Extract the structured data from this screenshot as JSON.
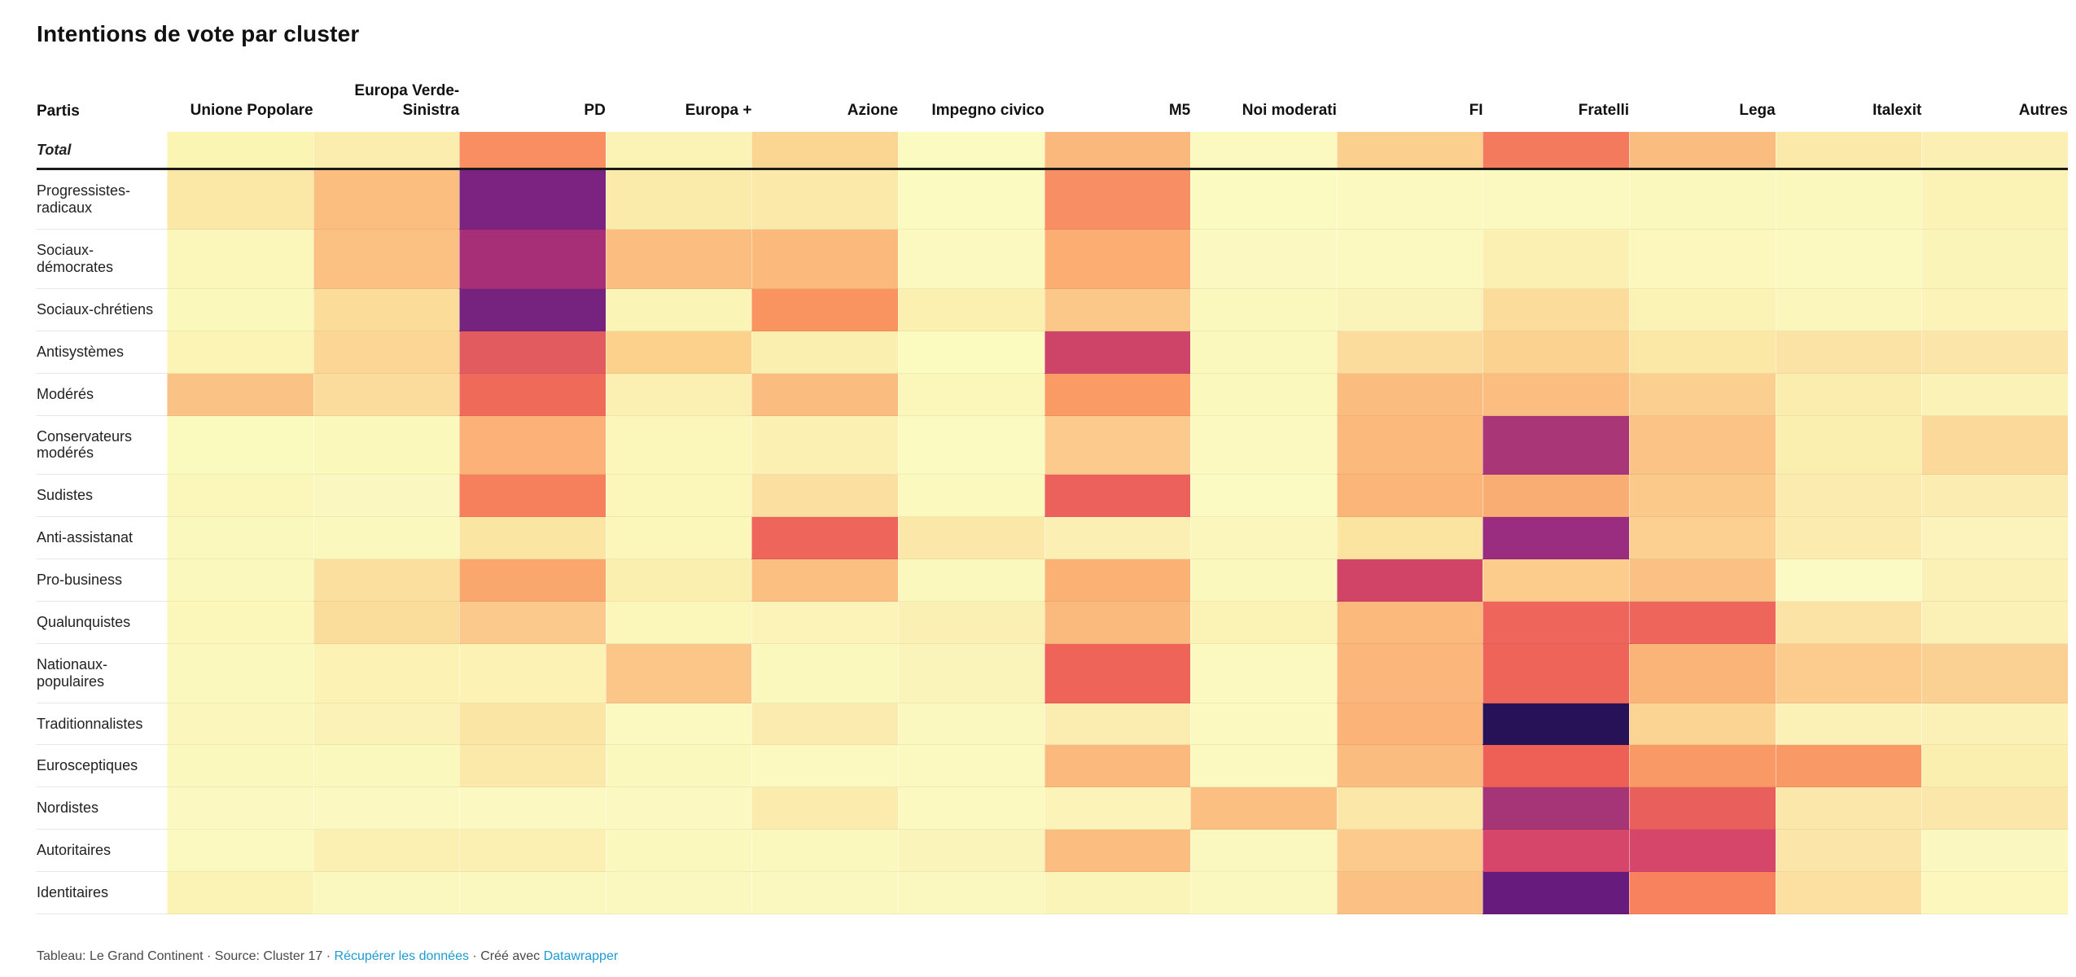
{
  "title": "Intentions de vote par cluster",
  "table": {
    "corner_label": "Partis"
  },
  "footer": {
    "prefix": "Tableau: Le Grand Continent · Source: Cluster 17 · ",
    "data_link": "Récupérer les données",
    "middle": " · Créé avec ",
    "brand_link": "Datawrapper"
  },
  "colors": {
    "link_blue": "#1D9BD3",
    "divider_black": "#1a1a1a",
    "label_gray": "#494949"
  },
  "chart_data": {
    "type": "heatmap",
    "title": "Intentions de vote par cluster",
    "legend_position": "none",
    "grid": "off",
    "scale_note": "pale yellow = low share, dark purple = high share",
    "columns": [
      "Unione Popolare",
      "Europa Verde-Sinistra",
      "PD",
      "Europa +",
      "Azione",
      "Impegno civico",
      "M5",
      "Noi moderati",
      "FI",
      "Fratelli",
      "Lega",
      "Italexit",
      "Autres"
    ],
    "rows": [
      "Total",
      "Progressistes-radicaux",
      "Sociaux-démocrates",
      "Sociaux-chrétiens",
      "Antisystèmes",
      "Modérés",
      "Conservateurs modérés",
      "Sudistes",
      "Anti-assistanat",
      "Pro-business",
      "Qualunquistes",
      "Nationaux-populaires",
      "Traditionnalistes",
      "Eurosceptiques",
      "Nordistes",
      "Autoritaires",
      "Identitaires"
    ],
    "total_row_index": 0,
    "cell_colors": [
      [
        "#FBF5B4",
        "#FBEDAE",
        "#F98E63",
        "#FBF3B5",
        "#FBD693",
        "#FBFAC1",
        "#FBB87C",
        "#FBF9C0",
        "#FBCF8E",
        "#F47A5E",
        "#FBBC80",
        "#FBE9A9",
        "#FBEFB3"
      ],
      [
        "#FBE7A6",
        "#FBBE7E",
        "#7C2382",
        "#FBEBAB",
        "#FBE9A9",
        "#FBFAC1",
        "#F88E63",
        "#FBFAC1",
        "#FBF9BF",
        "#FBF9BF",
        "#FBF8BE",
        "#FBF8BE",
        "#FBF3B6"
      ],
      [
        "#FBF6B9",
        "#FBC183",
        "#A62F77",
        "#FBBE80",
        "#FBBA7C",
        "#FBF9BF",
        "#FBAD72",
        "#FBF8C2",
        "#FBF9C0",
        "#FBF0B2",
        "#FBF7BD",
        "#FBF9BF",
        "#FBF4B8"
      ],
      [
        "#FBF8BC",
        "#FBDC98",
        "#76227F",
        "#FBF4B7",
        "#F9935F",
        "#FBF0AF",
        "#FBC88A",
        "#FBF8BE",
        "#FBF4BA",
        "#FBDC9B",
        "#FBF3B6",
        "#FBF6BB",
        "#FBF3B8"
      ],
      [
        "#FBF4B4",
        "#FBD694",
        "#E25B5E",
        "#FBD18C",
        "#FBEFB0",
        "#FBFABF",
        "#CE4368",
        "#FBF8BE",
        "#FBDC9C",
        "#FBD290",
        "#FBE8A7",
        "#FBE3A6",
        "#FBE5A9"
      ],
      [
        "#FBC285",
        "#FBDC9C",
        "#EF6A58",
        "#FBF0B1",
        "#FBBC80",
        "#FBF7BB",
        "#FA9A64",
        "#FBF8BD",
        "#FBBD7F",
        "#FBBD80",
        "#FBCF90",
        "#FBEDAE",
        "#FBF2B8"
      ],
      [
        "#FBFABE",
        "#FBF8BC",
        "#FBB177",
        "#FBF7BA",
        "#FBF0B1",
        "#FBFAC0",
        "#FBCA8C",
        "#FBF9C0",
        "#FBB97C",
        "#A93677",
        "#FBC385",
        "#FBEFB0",
        "#FBD99B"
      ],
      [
        "#FBF7BA",
        "#FBF7C0",
        "#F7805C",
        "#FBF6BA",
        "#FBDFA0",
        "#FBF9BE",
        "#EC615B",
        "#FBFAC3",
        "#FBB579",
        "#FAAD72",
        "#FBC98A",
        "#FBEBAE",
        "#FBEDB2"
      ],
      [
        "#FBF8BD",
        "#FBF8BD",
        "#FBE5A3",
        "#FBF7BB",
        "#EE655C",
        "#FBE8A9",
        "#FBEFB3",
        "#FBF6BC",
        "#FBE49F",
        "#9B2D80",
        "#FBD090",
        "#FBEBAE",
        "#FBF3BB"
      ],
      [
        "#FBF8BD",
        "#FBDF9E",
        "#FAA76D",
        "#FBEFAF",
        "#FBBF82",
        "#FBF8BE",
        "#FBB074",
        "#FBF8BE",
        "#D14367",
        "#FBCC8C",
        "#FBC184",
        "#FBFAC5",
        "#FBF0B6"
      ],
      [
        "#FBF7BB",
        "#FBDD9B",
        "#FBC98B",
        "#FBF6BA",
        "#FBF3B8",
        "#FBF0B4",
        "#FBBA7D",
        "#FBF2B6",
        "#FBB97C",
        "#ED655B",
        "#ED655B",
        "#FBE3A6",
        "#FBF0B6"
      ],
      [
        "#FBF8BE",
        "#FBF2B4",
        "#FBF2B4",
        "#FBC688",
        "#FBF8BE",
        "#FBF4BA",
        "#EE6458",
        "#FBF9BF",
        "#FBB67B",
        "#EE6458",
        "#FBB478",
        "#FBCC8E",
        "#FBD093"
      ],
      [
        "#FBF7BC",
        "#FBF2B8",
        "#FBE5A5",
        "#FBF8C0",
        "#FBEBAE",
        "#FBF8BF",
        "#FBEDB0",
        "#FBF9C0",
        "#FBB377",
        "#271258",
        "#FBD494",
        "#FBF0B6",
        "#FBF0B6"
      ],
      [
        "#FBF8BD",
        "#FBF8BD",
        "#FBE9A9",
        "#FBF8BE",
        "#FBF9BF",
        "#FBF9BF",
        "#FBB97D",
        "#FBF9C0",
        "#FBBC80",
        "#EE6056",
        "#F99966",
        "#F99966",
        "#FBEFB0"
      ],
      [
        "#FBF9C1",
        "#FBF9C1",
        "#FBF9C1",
        "#FBF9C1",
        "#FBEBAD",
        "#FBF9C0",
        "#FBF3B8",
        "#FBBF82",
        "#FBE7A8",
        "#A53577",
        "#E85F5C",
        "#FBE7AA",
        "#FBE7AA"
      ],
      [
        "#FBF9BF",
        "#FBEFB2",
        "#FBEFB2",
        "#FBF8BE",
        "#FBF8BE",
        "#FBF4BA",
        "#FBBD80",
        "#FBF8BF",
        "#FBCA8C",
        "#D6466A",
        "#D6466A",
        "#FBE5A8",
        "#FBF7C1"
      ],
      [
        "#FBF2B6",
        "#FBF8BF",
        "#FBF8BF",
        "#FBF8BF",
        "#FBF8BF",
        "#FBF8BF",
        "#FBF4B9",
        "#FBF8BF",
        "#FBC083",
        "#671C7D",
        "#F8815E",
        "#FBE0A2",
        "#FBF7BD"
      ]
    ]
  }
}
